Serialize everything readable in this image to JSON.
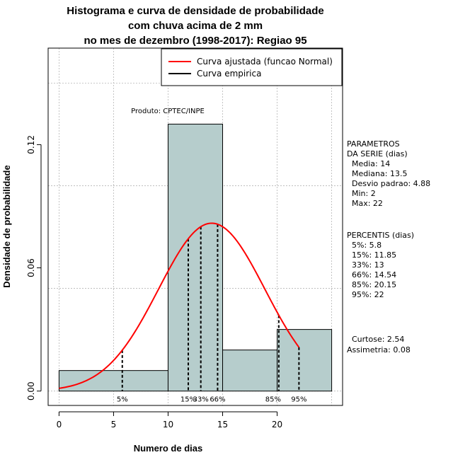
{
  "chart_data": {
    "type": "histogram",
    "title": [
      "Histograma e curva de densidade de probabilidade",
      "com chuva acima de 2 mm",
      "no mes de dezembro (1998-2017): Regiao 95"
    ],
    "xlabel": "Numero de dias",
    "ylabel": "Densidade de probabilidade",
    "xlim": [
      -1,
      26
    ],
    "ylim": [
      -0.007,
      0.167
    ],
    "x_ticks": [
      0,
      5,
      10,
      15,
      20
    ],
    "y_ticks": [
      0.0,
      0.06,
      0.12
    ],
    "y_tick_labels": [
      "0.00",
      "0.06",
      "0.12"
    ],
    "x_grid": [
      0,
      5,
      10,
      15,
      20,
      25
    ],
    "y_grid": [
      0.0,
      0.05,
      0.1,
      0.15
    ],
    "bars": [
      {
        "from": 0,
        "to": 10,
        "density": 0.01
      },
      {
        "from": 10,
        "to": 15,
        "density": 0.13
      },
      {
        "from": 15,
        "to": 20,
        "density": 0.02
      },
      {
        "from": 20,
        "to": 25,
        "density": 0.03
      }
    ],
    "bar_color": "#b6cdcc",
    "curve_color": "#ff0000",
    "normal_curve": {
      "mean": 14,
      "sd": 4.88,
      "x_from": 0,
      "x_to": 22
    },
    "percentile_lines": [
      {
        "label": "5%",
        "x": 5.8
      },
      {
        "label": "15%",
        "x": 11.85
      },
      {
        "label": "33%",
        "x": 13
      },
      {
        "label": "66%",
        "x": 14.54
      },
      {
        "label": "85%",
        "x": 20.15
      },
      {
        "label": "95%",
        "x": 22
      }
    ],
    "legend": [
      {
        "label": "Curva ajustada (funcao Normal)",
        "color": "#ff0000"
      },
      {
        "label": "Curva empirica",
        "color": "#000000"
      }
    ],
    "legend_position": "top-right",
    "annotation": "Produto: CPTEC/INPE"
  },
  "side_panel": {
    "parametros": [
      "PARAMETROS",
      "DA SERIE (dias)",
      "  Media: 14",
      "  Mediana: 13.5",
      "  Desvio padrao: 4.88",
      "  Min: 2",
      "  Max: 22"
    ],
    "percentis": [
      "PERCENTIS (dias)",
      "  5%: 5.8",
      "  15%: 11.85",
      "  33%: 13",
      "  66%: 14.54",
      "  85%: 20.15",
      "  95%: 22"
    ],
    "stats": [
      "Curtose: 2.54",
      "Assimetria: 0.08"
    ]
  }
}
